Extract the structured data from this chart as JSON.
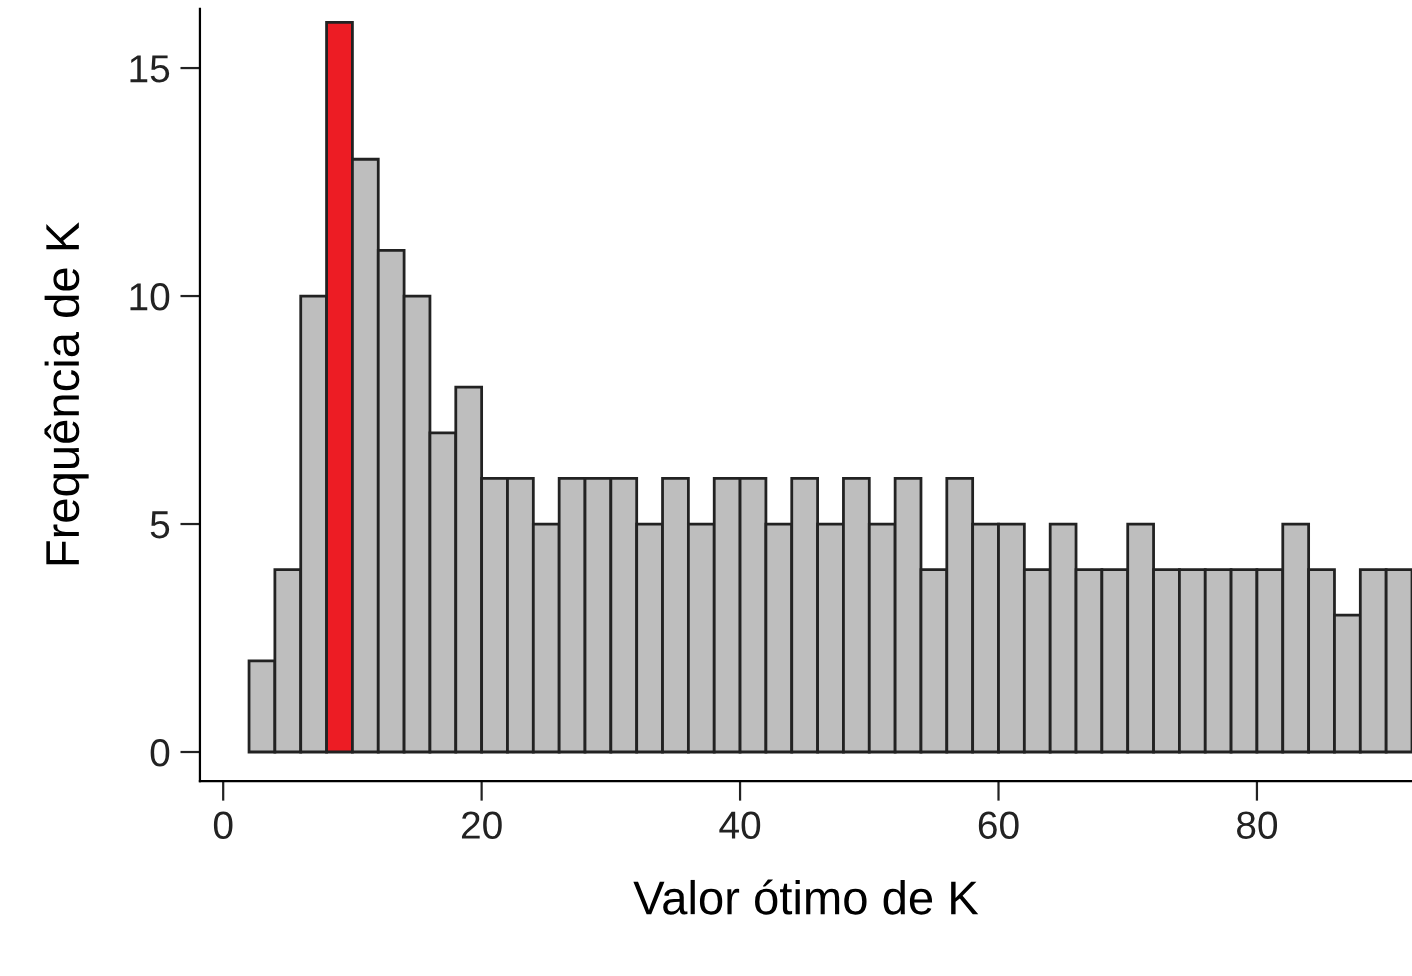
{
  "chart_data": {
    "type": "histogram",
    "xlabel": "Valor ótimo de K",
    "ylabel": "Frequência de K",
    "bins": [
      2,
      4,
      6,
      8,
      10,
      12,
      14,
      16,
      18,
      20,
      22,
      24,
      26,
      28,
      30,
      32,
      34,
      36,
      38,
      40,
      42,
      44,
      46,
      48,
      50,
      52,
      54,
      56,
      58,
      60,
      62,
      64,
      66,
      68,
      70,
      72,
      74,
      76,
      78,
      80,
      82,
      84,
      86,
      88,
      90,
      92
    ],
    "values": [
      2,
      4,
      10,
      16,
      13,
      11,
      10,
      7,
      8,
      6,
      6,
      5,
      6,
      6,
      6,
      5,
      6,
      5,
      6,
      6,
      5,
      6,
      5,
      6,
      5,
      6,
      4,
      6,
      5,
      5,
      4,
      5,
      4,
      4,
      5,
      4,
      4,
      4,
      4,
      4,
      5,
      4,
      3,
      4,
      4
    ],
    "colors": [
      "#bebebe",
      "#bebebe",
      "#bebebe",
      "#ed1c24",
      "#bebebe",
      "#bebebe",
      "#bebebe",
      "#bebebe",
      "#bebebe",
      "#bebebe",
      "#bebebe",
      "#bebebe",
      "#bebebe",
      "#bebebe",
      "#bebebe",
      "#bebebe",
      "#bebebe",
      "#bebebe",
      "#bebebe",
      "#bebebe",
      "#bebebe",
      "#bebebe",
      "#bebebe",
      "#bebebe",
      "#bebebe",
      "#bebebe",
      "#bebebe",
      "#bebebe",
      "#bebebe",
      "#bebebe",
      "#bebebe",
      "#bebebe",
      "#bebebe",
      "#bebebe",
      "#bebebe",
      "#bebebe",
      "#bebebe",
      "#bebebe",
      "#bebebe",
      "#bebebe",
      "#bebebe",
      "#bebebe",
      "#bebebe",
      "#bebebe",
      "#bebebe"
    ],
    "xlim": [
      -1.8,
      92
    ],
    "ylim": [
      -0.64,
      16.3
    ],
    "xticks": [
      0,
      20,
      40,
      60,
      80
    ],
    "yticks": [
      0,
      5,
      10,
      15
    ],
    "grid": false
  }
}
